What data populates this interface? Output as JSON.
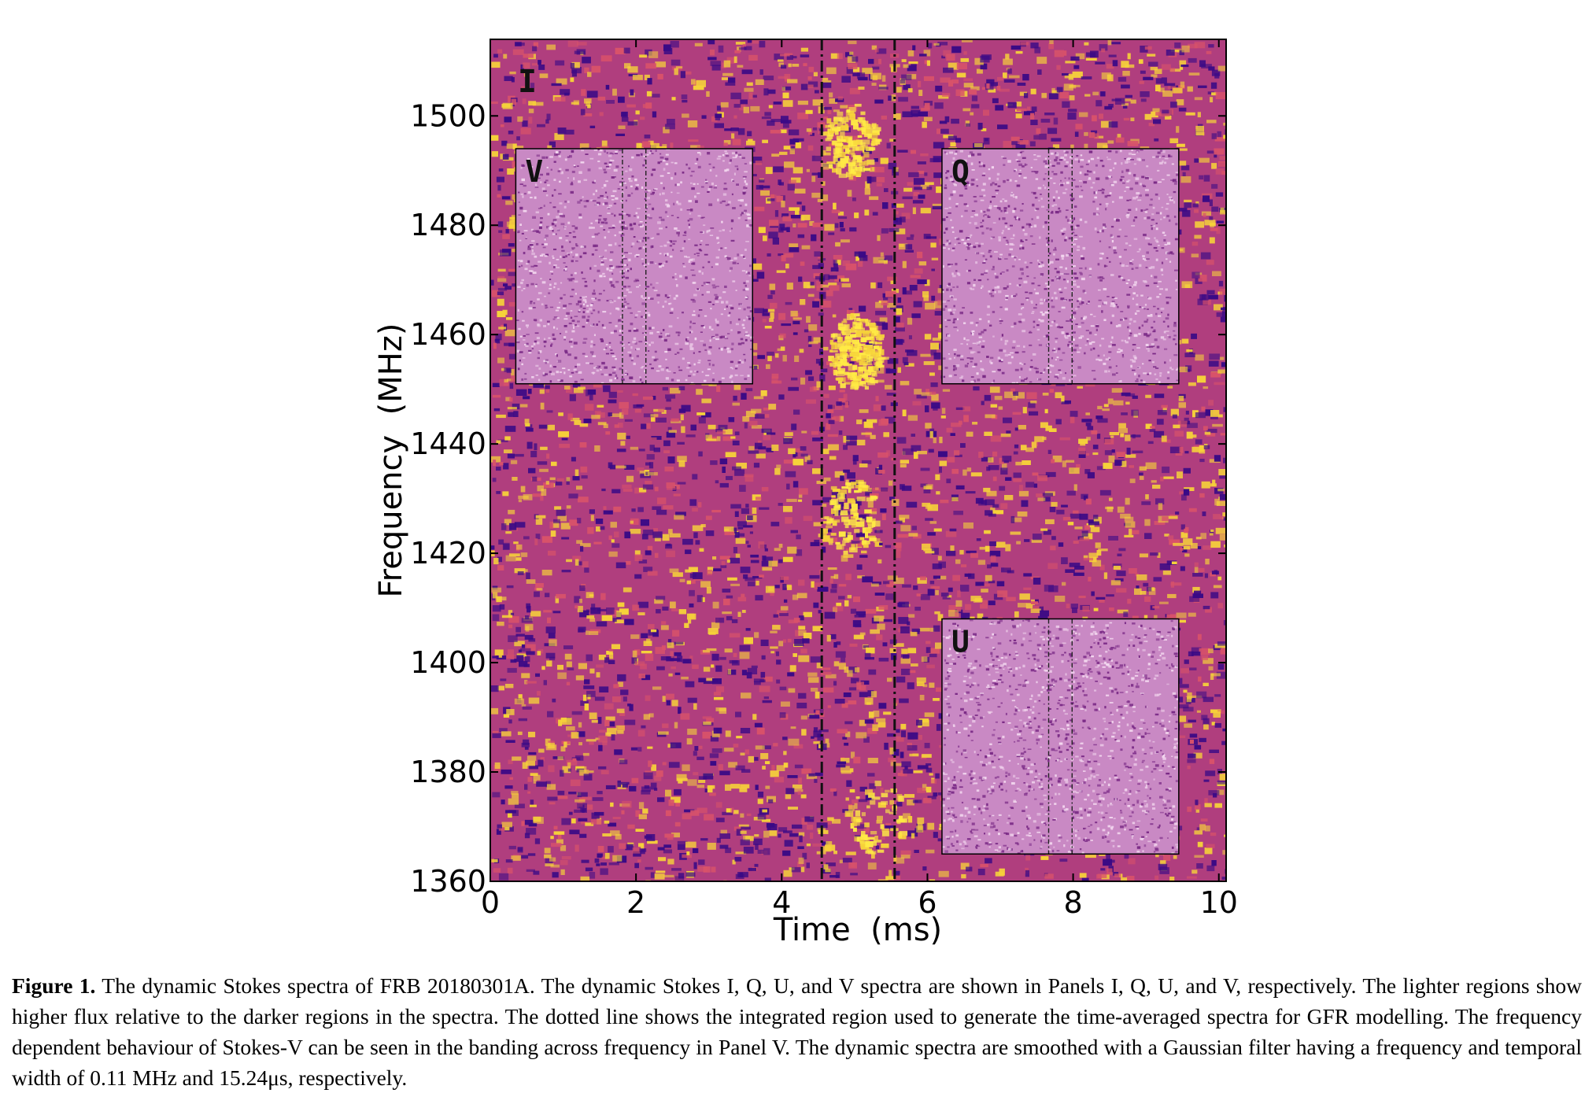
{
  "figure": {
    "panels": {
      "I": "I",
      "V": "V",
      "Q": "Q",
      "U": "U"
    },
    "xlabel": "Time  (ms)",
    "ylabel": "Frequency  (MHz)",
    "colors": {
      "main_background": "#b03e7e",
      "main_speckle_dark": "#3a0a86",
      "main_speckle_mid": "#d8526a",
      "main_speckle_bright": "#f6d23a",
      "burst_bright": "#ffea45",
      "inset_background": "#c989c4",
      "inset_speckle_dark": "#7a2a86",
      "inset_speckle_light": "#f2d6ee",
      "axes": "#000000"
    }
  },
  "chart_data": {
    "type": "heatmap",
    "title": "",
    "xlabel": "Time  (ms)",
    "ylabel": "Frequency  (MHz)",
    "xlim": [
      0,
      10.1
    ],
    "ylim": [
      1360,
      1514
    ],
    "xticks": [
      0,
      2,
      4,
      6,
      8,
      10
    ],
    "xtick_labels": [
      "0",
      "2",
      "4",
      "6",
      "8",
      "10"
    ],
    "yticks": [
      1360,
      1380,
      1400,
      1420,
      1440,
      1460,
      1480,
      1500
    ],
    "ytick_labels": [
      "1360",
      "1380",
      "1400",
      "1420",
      "1440",
      "1460",
      "1480",
      "1500"
    ],
    "integration_region_ms": [
      4.55,
      5.55
    ],
    "burst_emission": [
      {
        "time_ms": 4.9,
        "freq_mhz": 1496,
        "strength": 0.6
      },
      {
        "time_ms": 5.0,
        "freq_mhz": 1457,
        "strength": 1.0
      },
      {
        "time_ms": 4.9,
        "freq_mhz": 1427,
        "strength": 0.4
      },
      {
        "time_ms": 5.3,
        "freq_mhz": 1372,
        "strength": 0.3
      }
    ],
    "insets": [
      {
        "label": "V",
        "time_ms": [
          0.35,
          3.6
        ],
        "freq_mhz": [
          1451,
          1494
        ],
        "dotted_ms": [
          4.55,
          5.55
        ]
      },
      {
        "label": "Q",
        "time_ms": [
          6.2,
          9.45
        ],
        "freq_mhz": [
          1451,
          1494
        ],
        "dotted_ms": [
          4.55,
          5.55
        ]
      },
      {
        "label": "U",
        "time_ms": [
          6.2,
          9.45
        ],
        "freq_mhz": [
          1365,
          1408
        ],
        "dotted_ms": [
          4.55,
          5.55
        ]
      }
    ]
  },
  "caption": {
    "label": "Figure 1.",
    "text": " The dynamic Stokes spectra of FRB 20180301A. The dynamic Stokes I, Q, U, and V spectra are shown in Panels I, Q, U, and V, respectively. The lighter regions show higher flux relative to the darker regions in the spectra. The dotted line shows the integrated region used to generate the time-averaged spectra for GFR modelling. The frequency dependent behaviour of Stokes-V can be seen in the banding across frequency in Panel V. The dynamic spectra are smoothed with a Gaussian filter having a frequency and temporal width of 0.11 MHz and 15.24μs, respectively."
  }
}
